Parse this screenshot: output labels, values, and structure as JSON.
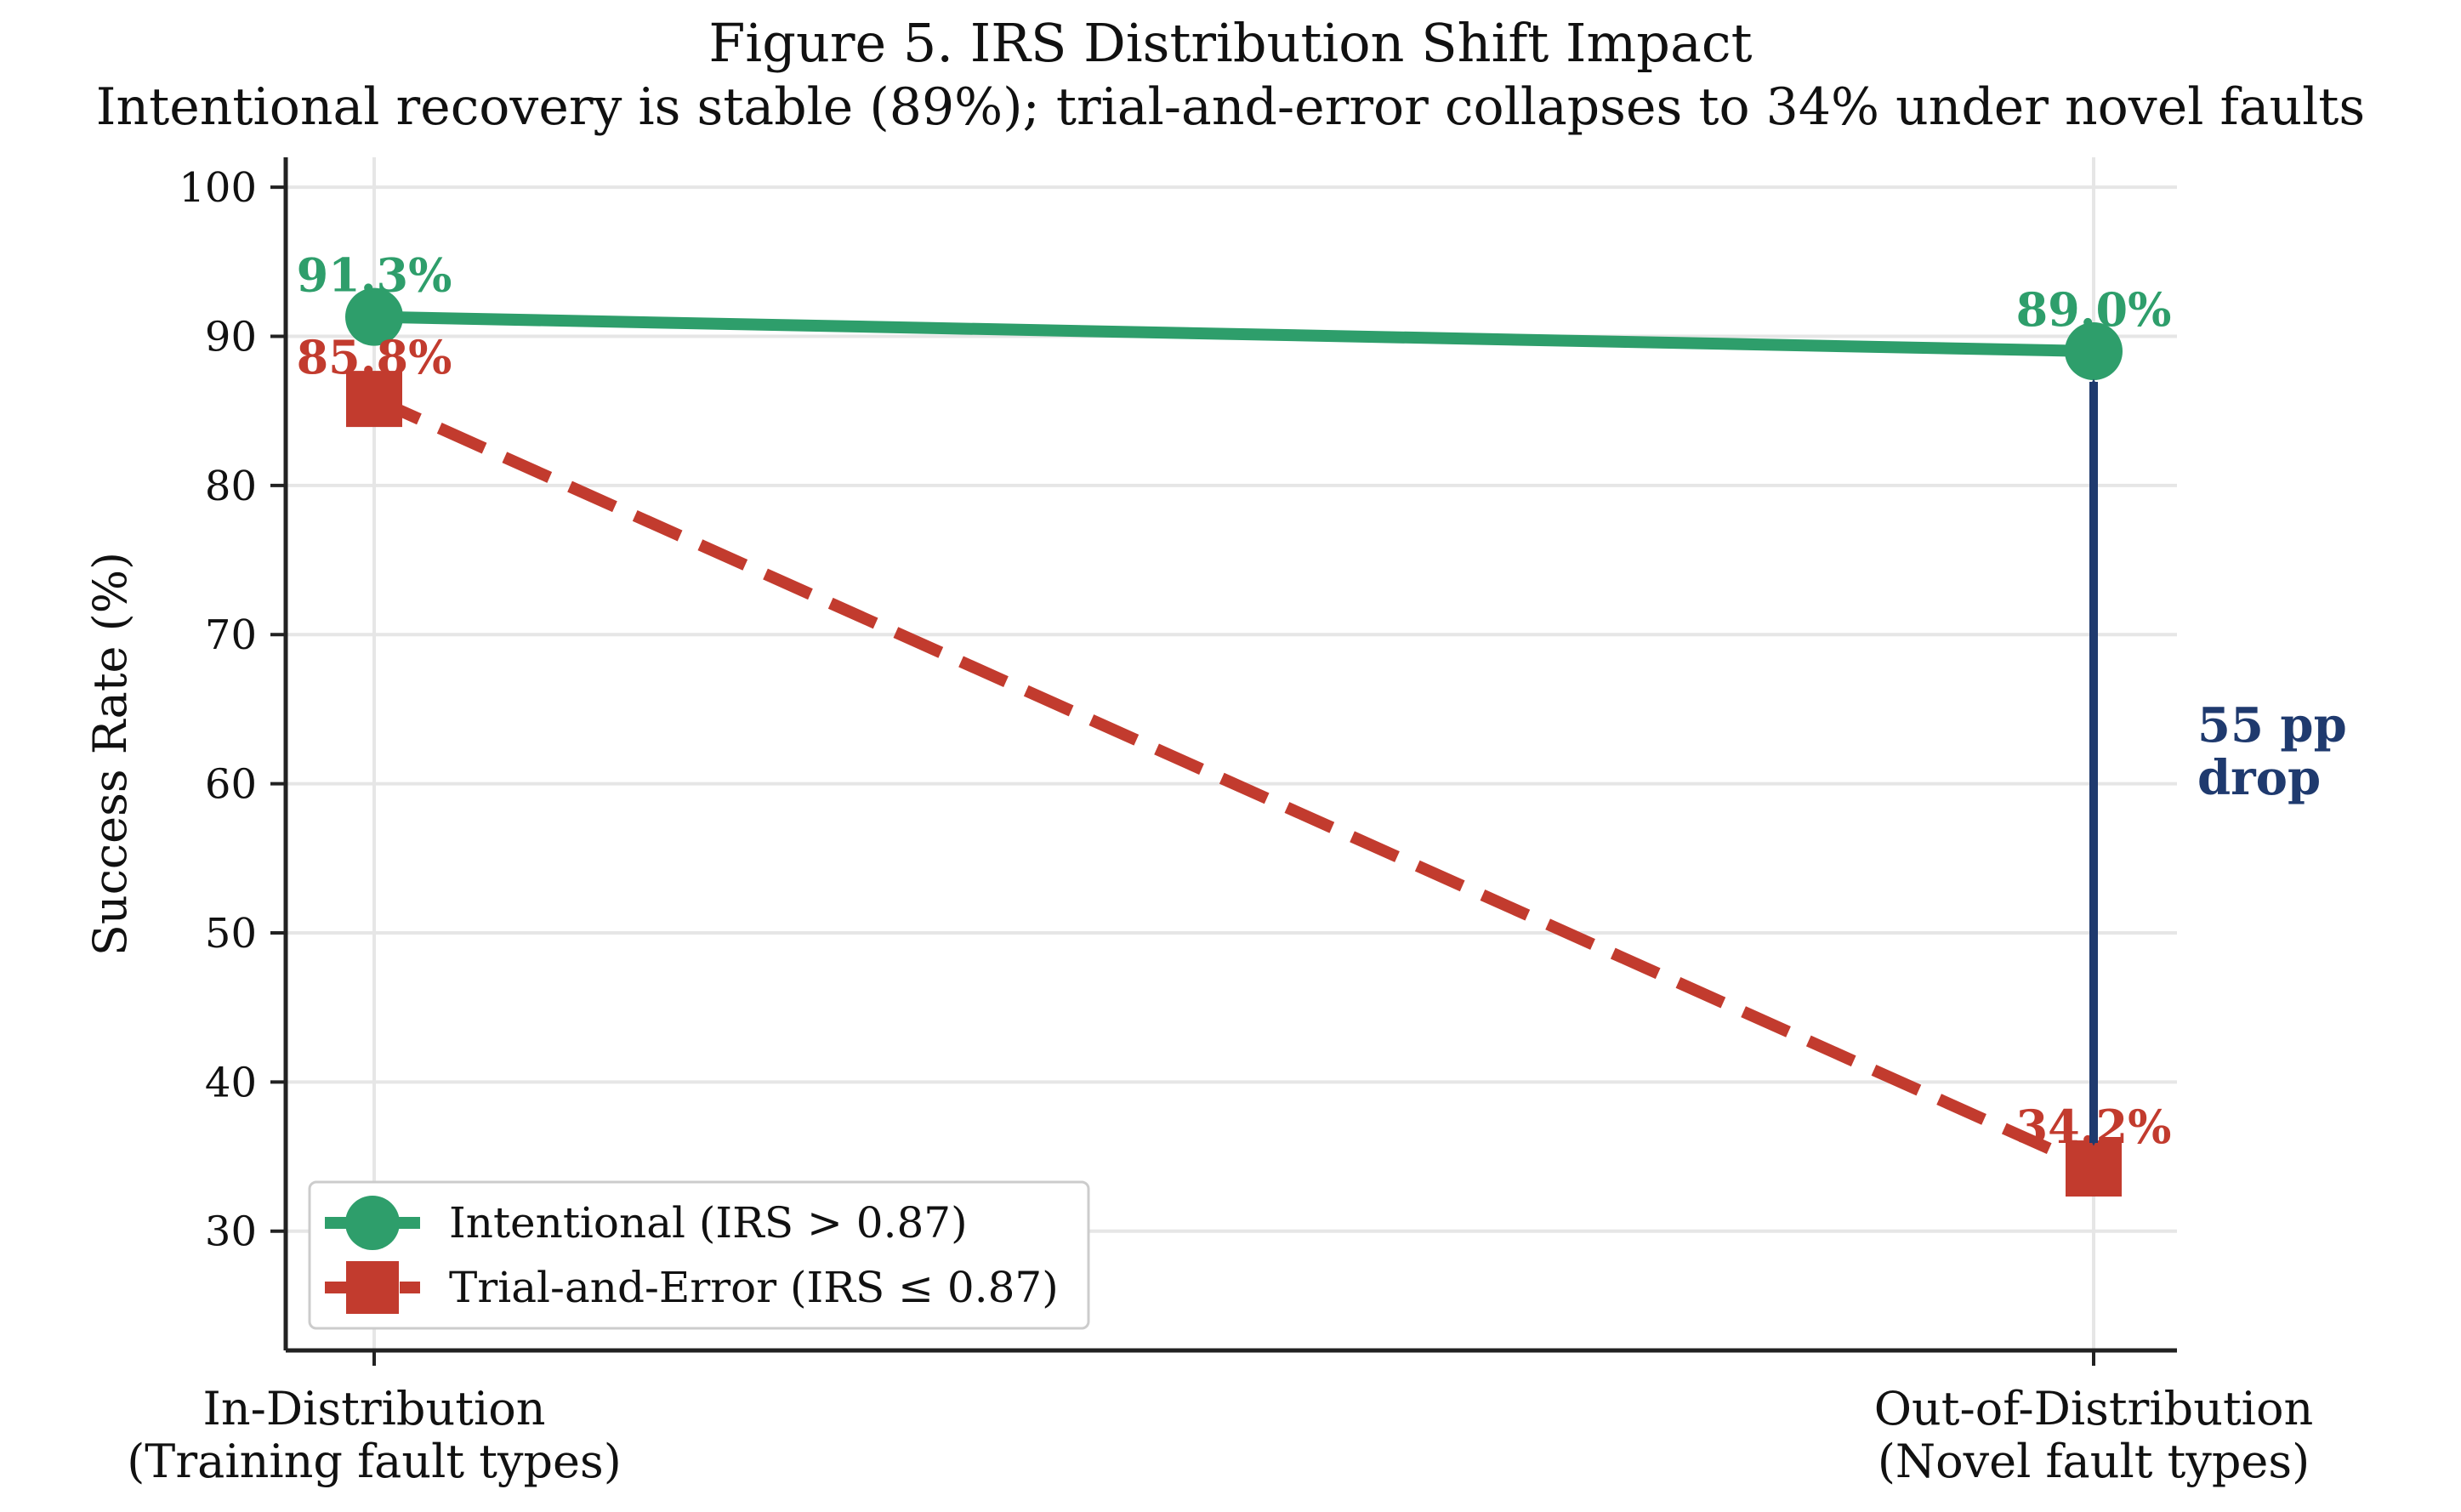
{
  "chart_data": {
    "type": "line",
    "title": "Figure 5. IRS Distribution Shift Impact",
    "subtitle": "Intentional recovery is stable (89%); trial-and-error collapses to 34% under novel faults",
    "ylabel": "Success Rate (%)",
    "ylim": [
      22,
      102
    ],
    "yticks": [
      30,
      40,
      50,
      60,
      70,
      80,
      90,
      100
    ],
    "grid": true,
    "legend": "lower-left",
    "categories": [
      [
        "In-Distribution",
        "(Training fault types)"
      ],
      [
        "Out-of-Distribution",
        "(Novel fault types)"
      ]
    ],
    "series": [
      {
        "name": "Intentional (IRS > 0.87)",
        "values": [
          91.3,
          89.0
        ],
        "labels": [
          "91.3%",
          "89.0%"
        ],
        "color": "#2e9e6b",
        "marker": "circle",
        "linestyle": "solid"
      },
      {
        "name": "Trial-and-Error (IRS ≤ 0.87)",
        "values": [
          85.8,
          34.2
        ],
        "labels": [
          "85.8%",
          "34.2%"
        ],
        "color": "#c23b2e",
        "marker": "square",
        "linestyle": "dashed"
      }
    ],
    "annotation": {
      "lines": [
        "55 pp",
        "drop"
      ],
      "category_index": 1,
      "from_value": 34.2,
      "to_value": 89.0,
      "color": "#1f3a6e"
    }
  }
}
